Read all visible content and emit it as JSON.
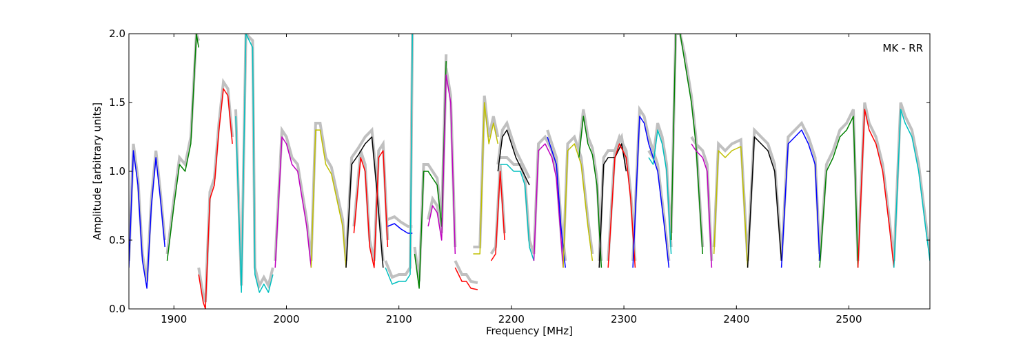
{
  "chart_data": {
    "type": "line",
    "title": "",
    "xlabel": "Frequency [MHz]",
    "ylabel": "Amplitude [arbitrary units]",
    "xlim": [
      1860,
      2572
    ],
    "ylim": [
      0.0,
      2.0
    ],
    "xticks": [
      1900,
      2000,
      2100,
      2200,
      2300,
      2400,
      2500
    ],
    "yticks": [
      0.0,
      0.5,
      1.0,
      1.5,
      2.0
    ],
    "xtick_labels": [
      "1900",
      "2000",
      "2100",
      "2200",
      "2300",
      "2400",
      "2500"
    ],
    "ytick_labels": [
      "0.0",
      "0.5",
      "1.0",
      "1.5",
      "2.0"
    ],
    "grid": false,
    "annotation": "MK - RR",
    "background_color": "#c0c0c0",
    "series": [
      {
        "color": "#0000ff",
        "x": [
          1860,
          1864,
          1868,
          1872,
          1876,
          1880,
          1884,
          1888,
          1892
        ],
        "y": [
          0.3,
          1.15,
          0.9,
          0.35,
          0.15,
          0.75,
          1.1,
          0.8,
          0.45
        ]
      },
      {
        "color": "#008000",
        "x": [
          1894,
          1900,
          1905,
          1910,
          1915,
          1920,
          1922
        ],
        "y": [
          0.35,
          0.75,
          1.05,
          1.0,
          1.2,
          2.0,
          1.9
        ]
      },
      {
        "color": "#ff0000",
        "x": [
          1922,
          1926,
          1928,
          1932,
          1936,
          1940,
          1944,
          1948,
          1952
        ],
        "y": [
          0.25,
          0.05,
          0.0,
          0.8,
          0.9,
          1.3,
          1.6,
          1.55,
          1.2
        ]
      },
      {
        "color": "#00bfbf",
        "x": [
          1955,
          1960,
          1964,
          1970,
          1972,
          1976,
          1980,
          1984,
          1988
        ],
        "y": [
          1.4,
          0.12,
          2.0,
          1.9,
          0.25,
          0.12,
          0.18,
          0.12,
          0.25
        ]
      },
      {
        "color": "#bf00bf",
        "x": [
          1990,
          1996,
          2000,
          2005,
          2010,
          2018,
          2022
        ],
        "y": [
          0.3,
          1.25,
          1.2,
          1.05,
          1.0,
          0.6,
          0.3
        ]
      },
      {
        "color": "#bfbf00",
        "x": [
          2022,
          2026,
          2030,
          2035,
          2040,
          2050,
          2053
        ],
        "y": [
          0.3,
          1.3,
          1.3,
          1.05,
          0.98,
          0.6,
          0.3
        ]
      },
      {
        "color": "#000000",
        "x": [
          2053,
          2058,
          2064,
          2070,
          2076,
          2080,
          2086
        ],
        "y": [
          0.3,
          1.05,
          1.12,
          1.2,
          1.25,
          0.9,
          0.3
        ]
      },
      {
        "color": "#ff0000",
        "x": [
          2060,
          2066,
          2070,
          2074,
          2078,
          2082,
          2086,
          2090
        ],
        "y": [
          0.55,
          1.1,
          1.0,
          0.45,
          0.3,
          1.1,
          1.15,
          0.45
        ]
      },
      {
        "color": "#0000ff",
        "x": [
          2090,
          2096,
          2102,
          2108,
          2112
        ],
        "y": [
          0.6,
          0.62,
          0.58,
          0.55,
          0.55
        ]
      },
      {
        "color": "#00bfbf",
        "x": [
          2088,
          2094,
          2100,
          2106,
          2110,
          2112
        ],
        "y": [
          0.3,
          0.18,
          0.2,
          0.2,
          0.25,
          2.0
        ]
      },
      {
        "color": "#008000",
        "x": [
          2114,
          2118,
          2122,
          2126,
          2130,
          2134,
          2138,
          2142
        ],
        "y": [
          0.4,
          0.15,
          1.0,
          1.0,
          0.95,
          0.9,
          0.6,
          1.8
        ]
      },
      {
        "color": "#bf00bf",
        "x": [
          2126,
          2130,
          2134,
          2138,
          2142,
          2146,
          2150
        ],
        "y": [
          0.6,
          0.75,
          0.7,
          0.5,
          1.7,
          1.5,
          0.4
        ]
      },
      {
        "color": "#ff0000",
        "x": [
          2150,
          2156,
          2160,
          2164,
          2170
        ],
        "y": [
          0.3,
          0.2,
          0.2,
          0.15,
          0.14
        ]
      },
      {
        "color": "#bfbf00",
        "x": [
          2166,
          2172,
          2176,
          2180,
          2184,
          2188
        ],
        "y": [
          0.4,
          0.4,
          1.5,
          1.2,
          1.35,
          1.2
        ]
      },
      {
        "color": "#000000",
        "x": [
          2188,
          2192,
          2196,
          2200,
          2204,
          2210,
          2216
        ],
        "y": [
          1.0,
          1.25,
          1.3,
          1.2,
          1.1,
          1.0,
          0.9
        ]
      },
      {
        "color": "#00bfbf",
        "x": [
          2190,
          2196,
          2202,
          2208,
          2212,
          2216,
          2220
        ],
        "y": [
          1.05,
          1.05,
          1.0,
          1.0,
          0.9,
          0.45,
          0.35
        ]
      },
      {
        "color": "#ff0000",
        "x": [
          2182,
          2186,
          2190,
          2194
        ],
        "y": [
          0.35,
          0.4,
          1.0,
          0.5
        ]
      },
      {
        "color": "#bf00bf",
        "x": [
          2220,
          2224,
          2230,
          2236,
          2240,
          2246
        ],
        "y": [
          0.35,
          1.15,
          1.2,
          1.1,
          0.95,
          0.3
        ]
      },
      {
        "color": "#0000ff",
        "x": [
          2232,
          2236,
          2240,
          2244,
          2248
        ],
        "y": [
          1.25,
          1.15,
          1.05,
          0.6,
          0.3
        ]
      },
      {
        "color": "#bfbf00",
        "x": [
          2246,
          2250,
          2256,
          2262,
          2268,
          2272
        ],
        "y": [
          0.3,
          1.15,
          1.2,
          1.05,
          0.6,
          0.35
        ]
      },
      {
        "color": "#008000",
        "x": [
          2260,
          2264,
          2268,
          2272,
          2276,
          2280
        ],
        "y": [
          1.1,
          1.4,
          1.2,
          1.12,
          0.9,
          0.3
        ]
      },
      {
        "color": "#000000",
        "x": [
          2278,
          2282,
          2286,
          2292,
          2298,
          2302
        ],
        "y": [
          0.3,
          1.05,
          1.1,
          1.1,
          1.2,
          1.0
        ]
      },
      {
        "color": "#ff0000",
        "x": [
          2286,
          2292,
          2296,
          2302,
          2306,
          2310
        ],
        "y": [
          0.3,
          1.1,
          1.2,
          1.1,
          0.8,
          0.3
        ]
      },
      {
        "color": "#0000ff",
        "x": [
          2308,
          2314,
          2318,
          2322,
          2326,
          2330,
          2336,
          2340
        ],
        "y": [
          0.3,
          1.4,
          1.35,
          1.2,
          1.1,
          1.0,
          0.6,
          0.3
        ]
      },
      {
        "color": "#00bfbf",
        "x": [
          2322,
          2326,
          2330,
          2334,
          2338,
          2342
        ],
        "y": [
          1.1,
          1.05,
          1.3,
          1.2,
          1.0,
          0.4
        ]
      },
      {
        "color": "#008000",
        "x": [
          2342,
          2346,
          2350,
          2354,
          2360,
          2364,
          2370
        ],
        "y": [
          0.5,
          2.0,
          2.0,
          1.8,
          1.5,
          1.2,
          0.4
        ]
      },
      {
        "color": "#bf00bf",
        "x": [
          2360,
          2364,
          2370,
          2374,
          2378
        ],
        "y": [
          1.2,
          1.15,
          1.1,
          1.0,
          0.3
        ]
      },
      {
        "color": "#bfbf00",
        "x": [
          2380,
          2384,
          2390,
          2396,
          2404,
          2410
        ],
        "y": [
          0.4,
          1.15,
          1.1,
          1.15,
          1.18,
          0.3
        ]
      },
      {
        "color": "#000000",
        "x": [
          2410,
          2416,
          2422,
          2428,
          2434,
          2440
        ],
        "y": [
          0.3,
          1.25,
          1.2,
          1.15,
          1.0,
          0.35
        ]
      },
      {
        "color": "#0000ff",
        "x": [
          2440,
          2446,
          2452,
          2458,
          2464,
          2470,
          2474
        ],
        "y": [
          0.3,
          1.2,
          1.25,
          1.3,
          1.2,
          1.05,
          0.35
        ]
      },
      {
        "color": "#008000",
        "x": [
          2474,
          2480,
          2486,
          2492,
          2498,
          2504,
          2508
        ],
        "y": [
          0.3,
          1.0,
          1.1,
          1.25,
          1.3,
          1.4,
          0.3
        ]
      },
      {
        "color": "#ff0000",
        "x": [
          2508,
          2514,
          2518,
          2524,
          2530,
          2536,
          2540
        ],
        "y": [
          0.3,
          1.45,
          1.3,
          1.2,
          1.0,
          0.6,
          0.3
        ]
      },
      {
        "color": "#00bfbf",
        "x": [
          2540,
          2546,
          2550,
          2556,
          2562,
          2568,
          2572
        ],
        "y": [
          0.3,
          1.45,
          1.35,
          1.25,
          1.0,
          0.6,
          0.35
        ]
      }
    ]
  }
}
